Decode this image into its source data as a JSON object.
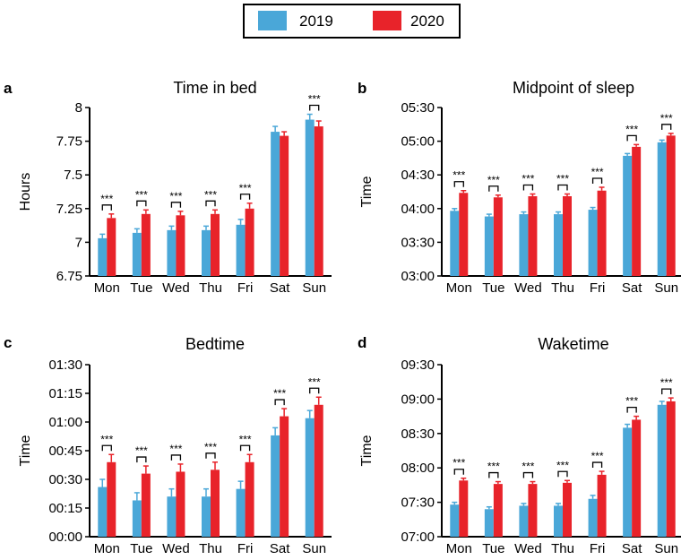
{
  "legend": [
    {
      "name": "2019",
      "color": "#4aa7d8"
    },
    {
      "name": "2020",
      "color": "#e8232a"
    }
  ],
  "significance_label": "***",
  "chart_data": [
    {
      "panel": "a",
      "type": "bar",
      "title": "Time in bed",
      "ylabel": "Hours",
      "categories": [
        "Mon",
        "Tue",
        "Wed",
        "Thu",
        "Fri",
        "Sat",
        "Sun"
      ],
      "yticks": [
        "6.75",
        "7",
        "7.25",
        "7.5",
        "7.75",
        "8"
      ],
      "ytick_values": [
        6.75,
        7,
        7.25,
        7.5,
        7.75,
        8
      ],
      "ylim": [
        6.75,
        8
      ],
      "series": [
        {
          "name": "2019",
          "values": [
            7.03,
            7.07,
            7.09,
            7.09,
            7.13,
            7.82,
            7.91
          ],
          "errors": [
            0.03,
            0.03,
            0.03,
            0.03,
            0.04,
            0.04,
            0.04
          ]
        },
        {
          "name": "2020",
          "values": [
            7.18,
            7.21,
            7.2,
            7.21,
            7.25,
            7.79,
            7.86
          ],
          "errors": [
            0.03,
            0.03,
            0.03,
            0.03,
            0.04,
            0.03,
            0.04
          ]
        }
      ],
      "significant": [
        true,
        true,
        true,
        true,
        true,
        false,
        true
      ]
    },
    {
      "panel": "b",
      "type": "bar",
      "title": "Midpoint of sleep",
      "ylabel": "Time",
      "categories": [
        "Mon",
        "Tue",
        "Wed",
        "Thu",
        "Fri",
        "Sat",
        "Sun"
      ],
      "yticks": [
        "03:00",
        "03:30",
        "04:00",
        "04:30",
        "05:00",
        "05:30"
      ],
      "ytick_values": [
        180,
        210,
        240,
        270,
        300,
        330
      ],
      "ylim": [
        180,
        330
      ],
      "series": [
        {
          "name": "2019",
          "values": [
            238,
            233,
            235,
            235,
            239,
            287,
            299
          ],
          "errors": [
            2,
            2,
            2,
            2,
            2,
            2,
            2
          ]
        },
        {
          "name": "2020",
          "values": [
            254,
            250,
            251,
            251,
            256,
            295,
            305
          ],
          "errors": [
            2,
            2,
            2,
            2,
            3,
            2,
            2
          ]
        }
      ],
      "significant": [
        true,
        true,
        true,
        true,
        true,
        true,
        true
      ]
    },
    {
      "panel": "c",
      "type": "bar",
      "title": "Bedtime",
      "ylabel": "Time",
      "categories": [
        "Mon",
        "Tue",
        "Wed",
        "Thu",
        "Fri",
        "Sat",
        "Sun"
      ],
      "yticks": [
        "00:00",
        "00:15",
        "00:30",
        "00:45",
        "01:00",
        "01:15",
        "01:30"
      ],
      "ytick_values": [
        0,
        15,
        30,
        45,
        60,
        75,
        90
      ],
      "ylim": [
        0,
        90
      ],
      "series": [
        {
          "name": "2019",
          "values": [
            26,
            19,
            21,
            21,
            25,
            53,
            62
          ],
          "errors": [
            4,
            4,
            4,
            4,
            4,
            4,
            4
          ]
        },
        {
          "name": "2020",
          "values": [
            39,
            33,
            34,
            35,
            39,
            63,
            69
          ],
          "errors": [
            4,
            4,
            4,
            4,
            4,
            4,
            4
          ]
        }
      ],
      "significant": [
        true,
        true,
        true,
        true,
        true,
        true,
        true
      ]
    },
    {
      "panel": "d",
      "type": "bar",
      "title": "Waketime",
      "ylabel": "Time",
      "categories": [
        "Mon",
        "Tue",
        "Wed",
        "Thu",
        "Fri",
        "Sat",
        "Sun"
      ],
      "yticks": [
        "07:00",
        "07:30",
        "08:00",
        "08:30",
        "09:00",
        "09:30"
      ],
      "ytick_values": [
        420,
        450,
        480,
        510,
        540,
        570
      ],
      "ylim": [
        420,
        570
      ],
      "series": [
        {
          "name": "2019",
          "values": [
            448,
            444,
            447,
            447,
            453,
            515,
            535
          ],
          "errors": [
            2,
            2,
            2,
            2,
            3,
            3,
            3
          ]
        },
        {
          "name": "2020",
          "values": [
            469,
            466,
            466,
            467,
            474,
            522,
            538
          ],
          "errors": [
            2,
            2,
            2,
            2,
            3,
            3,
            3
          ]
        }
      ],
      "significant": [
        true,
        true,
        true,
        true,
        true,
        true,
        true
      ]
    }
  ]
}
